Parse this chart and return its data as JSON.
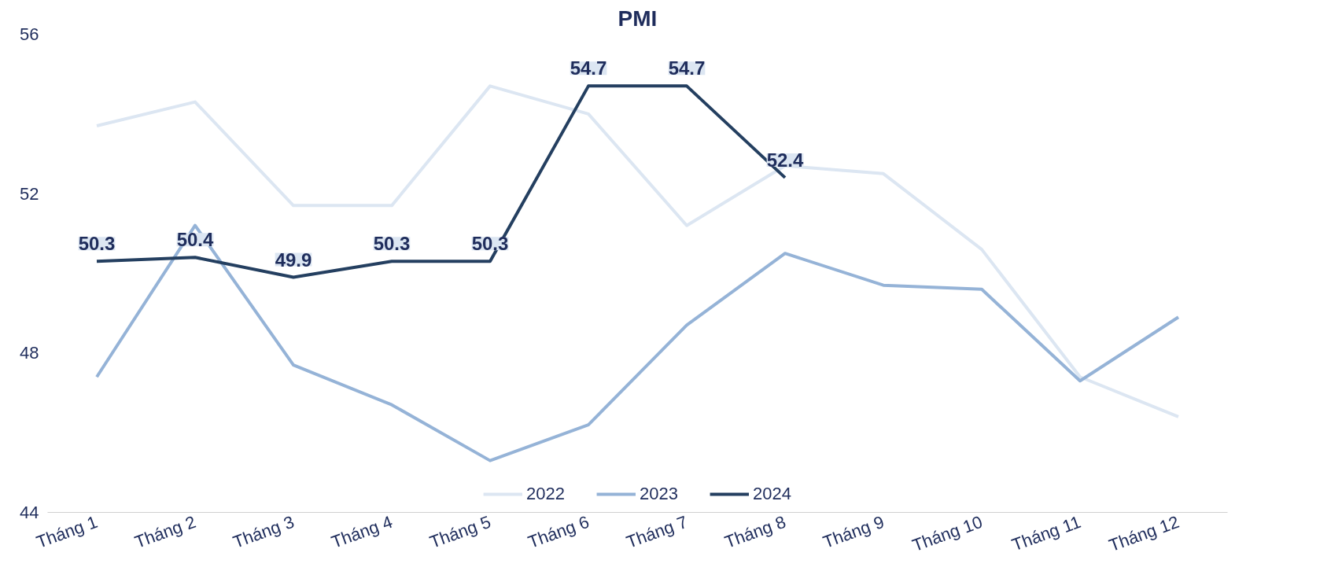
{
  "chart_data": {
    "type": "line",
    "title": "PMI",
    "categories": [
      "Tháng 1",
      "Tháng 2",
      "Tháng 3",
      "Tháng 4",
      "Tháng 5",
      "Tháng 6",
      "Tháng 7",
      "Tháng 8",
      "Tháng 9",
      "Tháng 10",
      "Tháng 11",
      "Tháng 12"
    ],
    "series": [
      {
        "name": "2022",
        "color": "#dce6f2",
        "values": [
          53.7,
          54.3,
          51.7,
          51.7,
          54.7,
          54.0,
          51.2,
          52.7,
          52.5,
          50.6,
          47.4,
          46.4
        ]
      },
      {
        "name": "2023",
        "color": "#95b3d7",
        "values": [
          47.4,
          51.2,
          47.7,
          46.7,
          45.3,
          46.2,
          48.7,
          50.5,
          49.7,
          49.6,
          47.3,
          48.9
        ]
      },
      {
        "name": "2024",
        "color": "#243f60",
        "values": [
          50.3,
          50.4,
          49.9,
          50.3,
          50.3,
          54.7,
          54.7,
          52.4,
          null,
          null,
          null,
          null
        ],
        "value_labels": [
          "50.3",
          "50.4",
          "49.9",
          "50.3",
          "50.3",
          "54.7",
          "54.7",
          "52.4",
          null,
          null,
          null,
          null
        ]
      }
    ],
    "ylim": [
      44,
      56
    ],
    "yticks": [
      44,
      48,
      52,
      56
    ],
    "grid": false,
    "legend": "bottom",
    "marker": "none",
    "line_style": "solid"
  }
}
